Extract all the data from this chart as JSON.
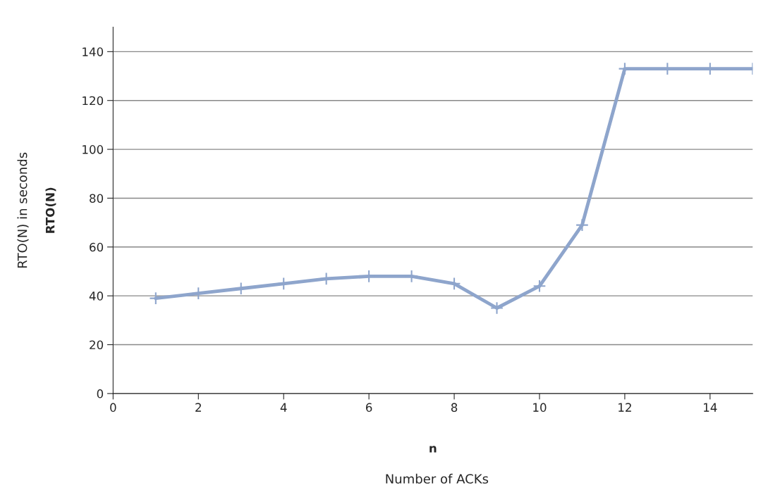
{
  "chart_data": {
    "type": "line",
    "xlabel": "n",
    "ylabel": "RTO(N)",
    "annotations": [
      "RTO(N) in seconds",
      "Number of ACKs"
    ],
    "x": [
      1,
      2,
      3,
      4,
      5,
      6,
      7,
      8,
      9,
      10,
      11,
      12,
      13,
      14,
      15
    ],
    "series": [
      {
        "color": "#8ea5cc",
        "values": [
          39,
          41,
          43,
          45,
          47,
          48,
          48,
          45,
          35,
          44,
          69,
          133,
          133,
          133,
          133
        ]
      }
    ],
    "xlim": [
      0,
      15
    ],
    "xticks": [
      0,
      2,
      4,
      6,
      8,
      10,
      12,
      14
    ],
    "ylim": [
      0,
      150
    ],
    "yticks": [
      0,
      20,
      40,
      60,
      80,
      100,
      120,
      140
    ],
    "grid": "y",
    "marker": "cross",
    "line_style": "solid",
    "legend": false
  }
}
